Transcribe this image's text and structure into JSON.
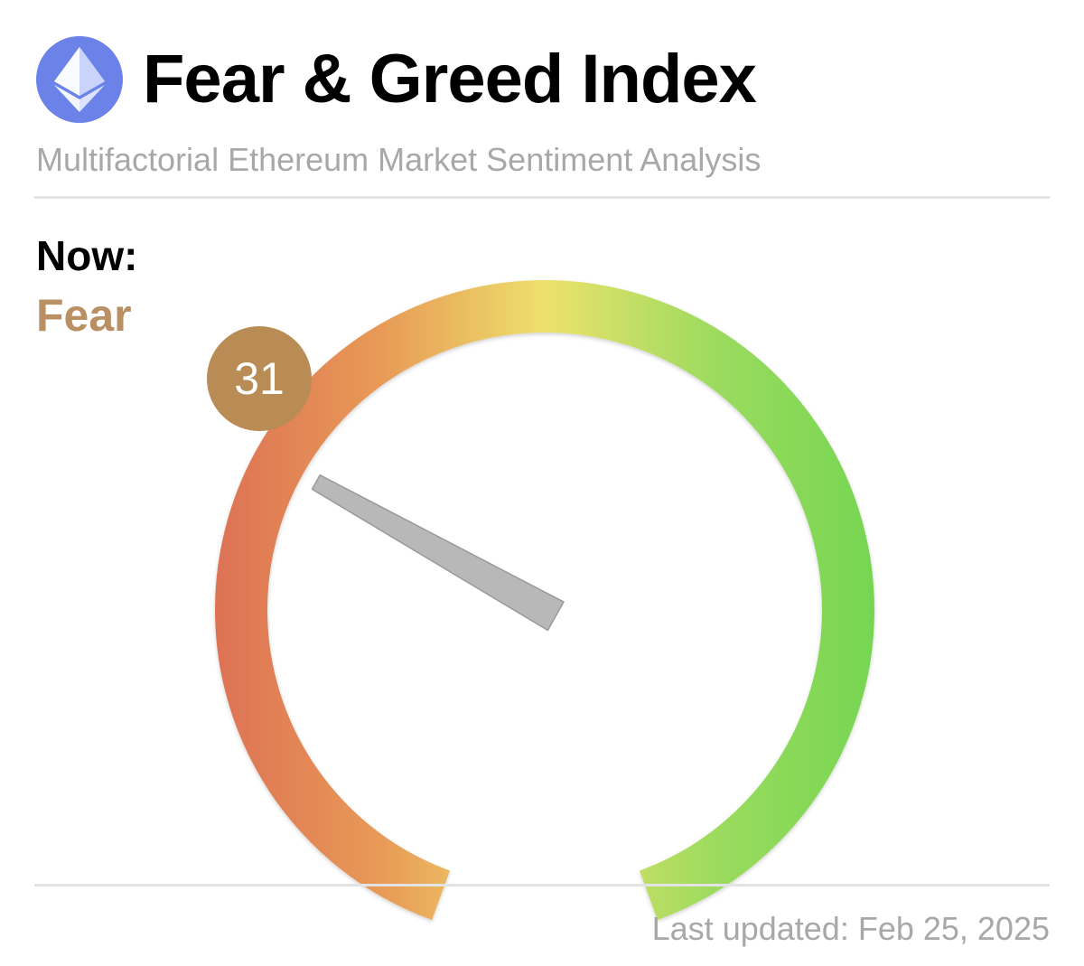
{
  "header": {
    "title": "Fear & Greed Index",
    "subtitle": "Multifactorial Ethereum Market Sentiment Analysis",
    "logo_icon": "ethereum-icon",
    "logo_color": "#6b82e8"
  },
  "current": {
    "label": "Now:",
    "state": "Fear",
    "value": "31",
    "value_numeric": 31,
    "state_color": "#b89063",
    "badge_color": "#b98b55"
  },
  "gauge": {
    "min": 0,
    "max": 100,
    "colors": [
      "#dd7254",
      "#e89a57",
      "#ede16c",
      "#9ddb5f",
      "#75d651"
    ],
    "needle_color": "#b8b8b8"
  },
  "footer": {
    "updated_label": "Last updated: Feb 25, 2025"
  }
}
